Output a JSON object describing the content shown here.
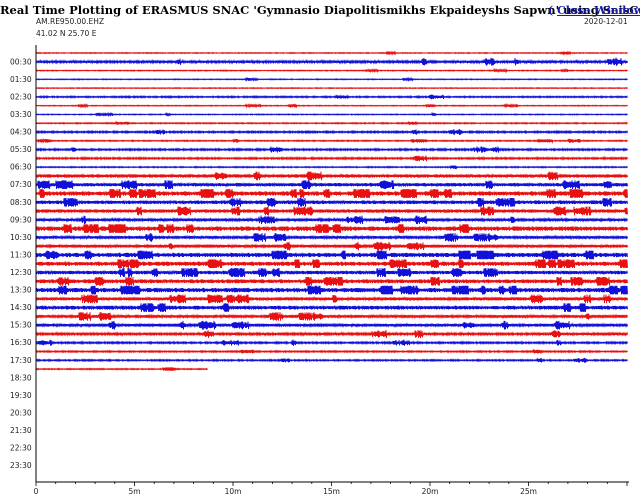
{
  "header": {
    "title": "Real Time Plotting of ERASMUS SNAC 'Gymnasio Diapolitismikhs Ekpaideyshs Sapwn' using SeisComp",
    "close_label": "Close Window",
    "station": "AM.RE950.00.EHZ",
    "coords": "41.02 N 25.70 E",
    "date": "2020-12-01"
  },
  "colors": {
    "red": "#e81010",
    "blue": "#1010d8",
    "axis": "#000000",
    "background": "#ffffff"
  },
  "chart_data": {
    "type": "line",
    "time_labels": [
      "00:30",
      "01:30",
      "02:30",
      "03:30",
      "04:30",
      "05:30",
      "06:30",
      "07:30",
      "08:30",
      "09:30",
      "10:30",
      "11:30",
      "12:30",
      "13:30",
      "14:30",
      "15:30",
      "16:30",
      "17:30",
      "18:30",
      "19:30",
      "20:30",
      "21:30",
      "22:30",
      "23:30"
    ],
    "xticks": [
      "0",
      "5m",
      "10m",
      "15m",
      "20m",
      "25m"
    ],
    "xlim": [
      0,
      30
    ],
    "traces_per_hour": 2,
    "trace_colors": [
      "red",
      "blue"
    ],
    "filled_traces": 37,
    "last_trace_end_minute": 8.7,
    "noise_level": [
      0.3,
      0.8,
      0.3,
      0.3,
      0.3,
      0.5,
      0.3,
      0.3,
      0.4,
      0.6,
      0.4,
      0.6,
      0.6,
      0.4,
      1.2,
      1.2,
      1.6,
      1.3,
      1.2,
      0.9,
      1.6,
      1.0,
      1.0,
      1.6,
      1.5,
      1.3,
      1.4,
      1.6,
      1.1,
      1.4,
      1.0,
      1.0,
      0.8,
      0.6,
      0.5,
      0.5,
      0.4
    ]
  }
}
